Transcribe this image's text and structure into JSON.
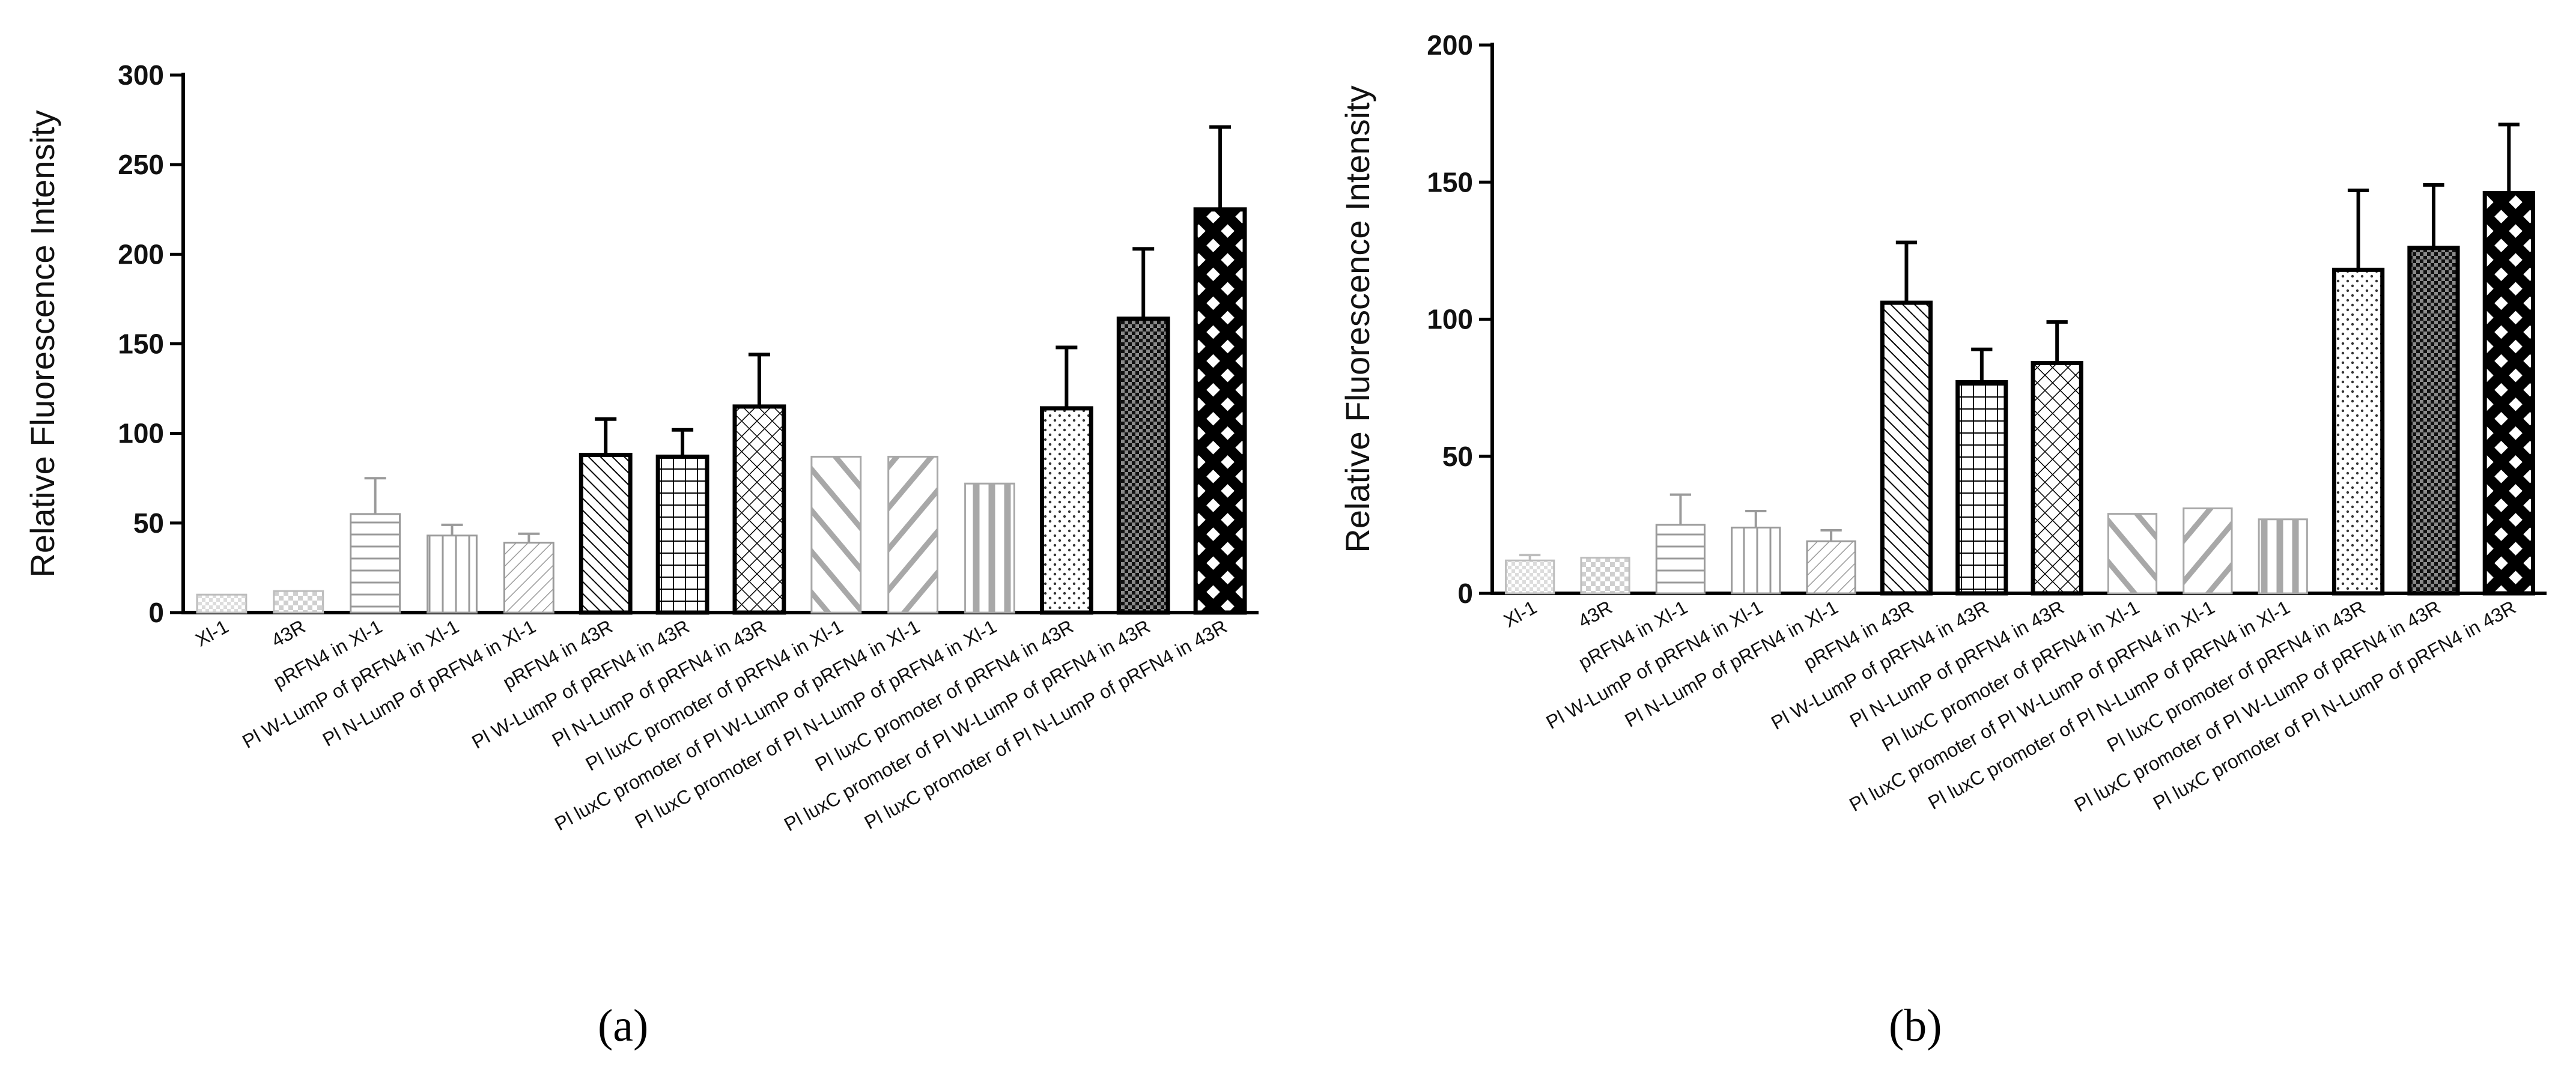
{
  "chart_data": [
    {
      "type": "bar",
      "panel": "a",
      "caption": "(a)",
      "ylabel": "Relative Fluorescence Intensity",
      "xlabel": "",
      "ylim": [
        0,
        300
      ],
      "yticks": [
        0,
        50,
        100,
        150,
        200,
        250,
        300
      ],
      "categories": [
        "Xl-1",
        "43R",
        "pRFN4 in Xl-1",
        "Pl W-LumP of pRFN4 in Xl-1",
        "Pl N-LumP of pRFN4 in Xl-1",
        "pRFN4 in 43R",
        "Pl W-LumP of pRFN4 in 43R",
        "Pl N-LumP of pRFN4 in 43R",
        "Pl luxC promoter of pRFN4 in Xl-1",
        "Pl luxC promoter of Pl W-LumP of pRFN4 in Xl-1",
        "Pl luxC promoter of Pl N-LumP of pRFN4 in Xl-1",
        "Pl luxC promoter of pRFN4 in 43R",
        "Pl luxC promoter of Pl W-LumP of pRFN4 in 43R",
        "Pl luxC promoter of Pl N-LumP of pRFN4 in 43R"
      ],
      "values": [
        10,
        12,
        55,
        43,
        39,
        88,
        87,
        115,
        87,
        87,
        72,
        114,
        164,
        225
      ],
      "errors": [
        0,
        0,
        20,
        6,
        5,
        20,
        15,
        29,
        0,
        0,
        0,
        34,
        39,
        46
      ]
    },
    {
      "type": "bar",
      "panel": "b",
      "caption": "(b)",
      "ylabel": "Relative Fluorescence Intensity",
      "xlabel": "",
      "ylim": [
        0,
        200
      ],
      "yticks": [
        0,
        50,
        100,
        150,
        200
      ],
      "categories": [
        "Xl-1",
        "43R",
        "pRFN4 in Xl-1",
        "Pl W-LumP of pRFN4 in Xl-1",
        "Pl N-LumP of pRFN4 in Xl-1",
        "pRFN4 in 43R",
        "Pl W-LumP of pRFN4 in 43R",
        "Pl N-LumP of pRFN4 in 43R",
        "Pl luxC promoter of pRFN4 in Xl-1",
        "Pl luxC promoter of Pl W-LumP of pRFN4 in Xl-1",
        "Pl luxC promoter of Pl N-LumP of pRFN4 in Xl-1",
        "Pl luxC promoter of pRFN4 in 43R",
        "Pl luxC promoter of Pl W-LumP of pRFN4 in 43R",
        "Pl luxC promoter of Pl N-LumP of pRFN4 in 43R"
      ],
      "values": [
        12,
        13,
        25,
        24,
        19,
        106,
        77,
        84,
        29,
        31,
        27,
        118,
        126,
        146
      ],
      "errors": [
        2,
        0,
        11,
        6,
        4,
        22,
        12,
        15,
        0,
        0,
        0,
        29,
        23,
        25
      ]
    }
  ],
  "styles": {
    "light_stroke": "#9a9a9a",
    "mid_fill": "#a8a8a8",
    "dark_stroke": "#000000",
    "background": "#ffffff"
  }
}
